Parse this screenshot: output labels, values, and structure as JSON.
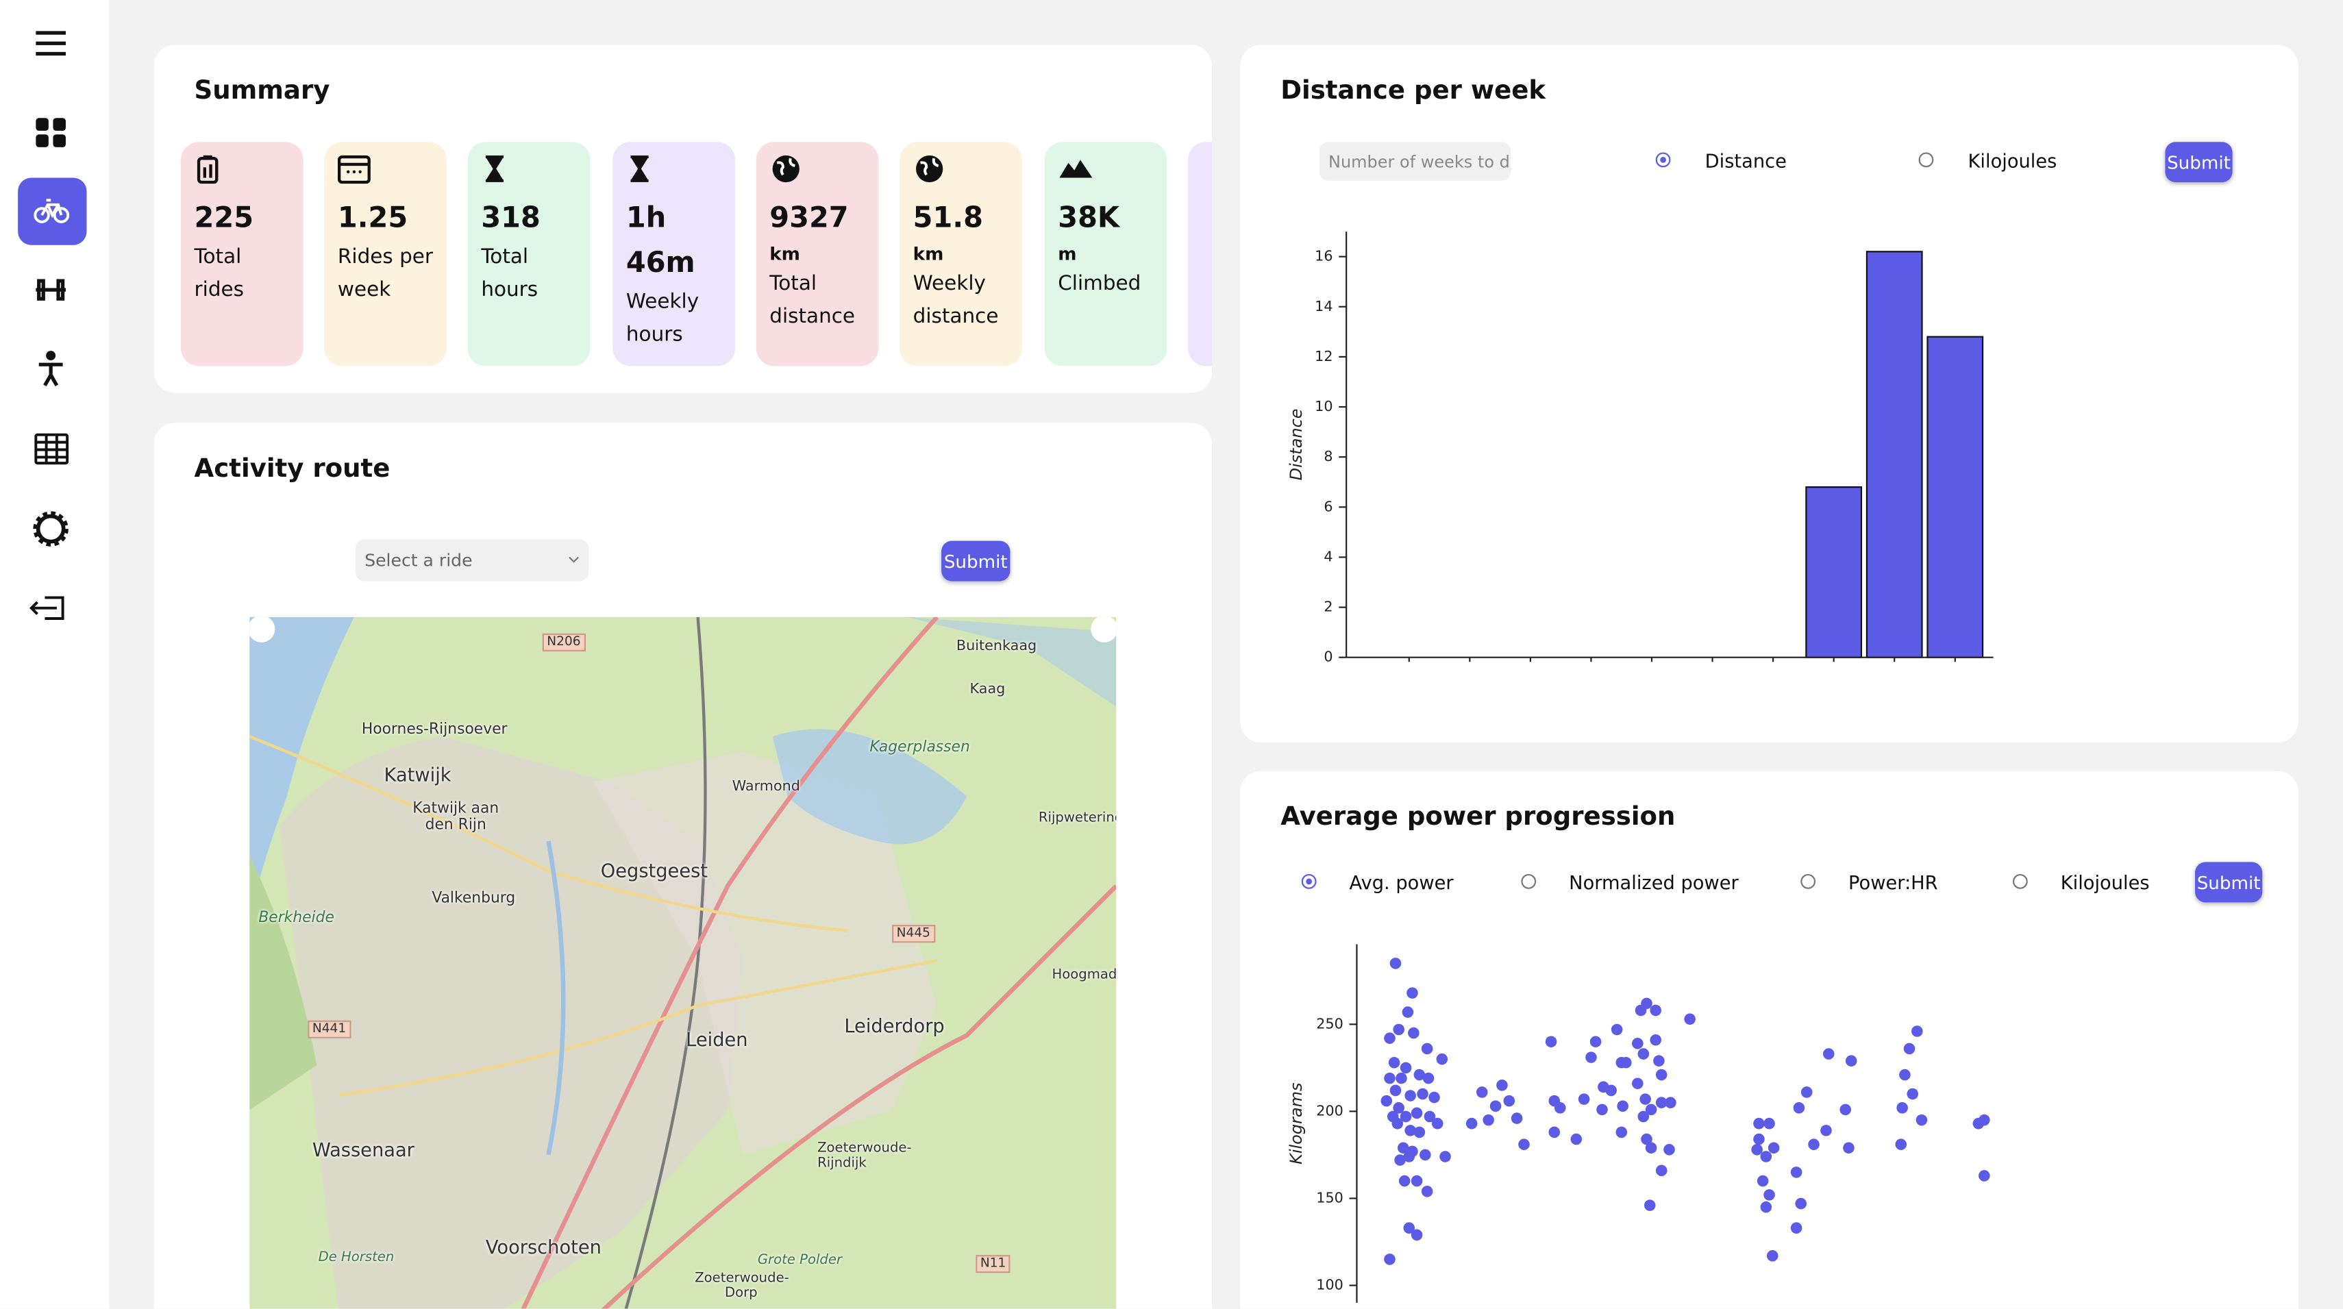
{
  "summary": {
    "title": "Summary",
    "tiles": [
      {
        "value": 225,
        "label": "Total rides"
      },
      {
        "value": 1.25,
        "label": "Rides per week"
      },
      {
        "value": 318,
        "label": "Total hours"
      },
      {
        "value": "1h 46m",
        "label": "Weekly hours"
      },
      {
        "value": 9327,
        "unit": "km",
        "label": "Total distance"
      },
      {
        "value": 51.8,
        "unit": "km",
        "label": "Weekly distance"
      },
      {
        "value": "38K",
        "unit": "m",
        "label": "Climbed"
      }
    ]
  },
  "route": {
    "title": "Activity route",
    "select_placeholder": "Select a ride",
    "submit": "Submit",
    "map_labels": [
      "Hoornes-Rijnsoever",
      "Katwijk",
      "Katwijk aan den Rijn",
      "Oegstgeest",
      "Valkenburg",
      "Berkheide",
      "Leiden",
      "Leiderdorp",
      "Wassenaar",
      "Voorschoten",
      "De Horsten",
      "Zoeterwoude-Rijndijk",
      "Zoeterwoude-Dorp",
      "Grote Polder",
      "Warmond",
      "Kagerplassen",
      "Kaag",
      "Buitenkaag",
      "Rijpwetering",
      "Hoogmade",
      "N206",
      "N445",
      "N441",
      "N11"
    ]
  },
  "distance_panel": {
    "title": "Distance per week",
    "input_placeholder": "Number of weeks to dis",
    "options": [
      "Distance",
      "Kilojoules"
    ],
    "submit": "Submit"
  },
  "power_panel": {
    "title": "Average power progression",
    "options": [
      "Avg. power",
      "Normalized power",
      "Power:HR",
      "Kilojoules"
    ],
    "submit": "Submit"
  },
  "chart_data": [
    {
      "type": "bar",
      "y_label": "Distance",
      "categories": [
        null,
        null,
        null,
        null,
        null,
        null,
        null,
        null,
        null,
        null
      ],
      "values": [
        0,
        0,
        0,
        0,
        0,
        0,
        0,
        6.8,
        16.2,
        12.8
      ],
      "color": "#5b5be6",
      "ylim": [
        0,
        17
      ],
      "yticks": [
        0,
        2,
        4,
        6,
        8,
        10,
        12,
        14,
        16
      ]
    },
    {
      "type": "scatter",
      "y_label": "Kilograms",
      "color": "#5b5be6",
      "xlim": [
        0,
        100
      ],
      "ylim": [
        90,
        296
      ],
      "yticks": [
        100,
        150,
        200,
        250
      ],
      "x": [
        6.0,
        8.6,
        7.9,
        6.5,
        5.1,
        8.8,
        10.9,
        5.8,
        7.6,
        5.1,
        6.9,
        9.7,
        11.1,
        13.2,
        6.0,
        8.3,
        10.2,
        12.0,
        4.6,
        6.5,
        7.6,
        9.3,
        5.6,
        11.3,
        12.5,
        6.3,
        8.3,
        9.7,
        7.2,
        8.6,
        6.7,
        8.1,
        10.6,
        13.7,
        7.4,
        9.3,
        10.9,
        8.1,
        9.3,
        5.1,
        17.8,
        19.4,
        20.4,
        21.5,
        22.5,
        23.6,
        24.8,
        25.9,
        30.1,
        30.6,
        31.5,
        30.6,
        34.0,
        35.2,
        36.3,
        37.0,
        38.0,
        38.2,
        39.4,
        40.3,
        41.0,
        41.7,
        41.2,
        41.0,
        44.0,
        44.9,
        46.3,
        43.5,
        44.4,
        46.3,
        46.8,
        47.2,
        43.5,
        44.7,
        45.6,
        47.2,
        48.6,
        44.4,
        44.9,
        45.6,
        48.4,
        47.2,
        45.4,
        51.6,
        62.3,
        63.9,
        62.3,
        62.0,
        63.4,
        64.6,
        62.9,
        63.9,
        63.4,
        64.4,
        68.5,
        69.7,
        68.1,
        68.8,
        68.1,
        70.8,
        72.7,
        73.1,
        75.7,
        76.2,
        76.6,
        86.8,
        85.6,
        84.9,
        84.5,
        86.1,
        87.5,
        84.3,
        96.3,
        97.2,
        97.2
      ],
      "values": [
        285,
        268,
        257,
        247,
        242,
        245,
        236,
        228,
        225,
        219,
        219,
        221,
        219,
        230,
        212,
        209,
        210,
        208,
        206,
        202,
        197,
        199,
        197,
        197,
        193,
        193,
        189,
        188,
        179,
        177,
        172,
        174,
        175,
        174,
        160,
        160,
        154,
        133,
        129,
        115,
        193,
        211,
        195,
        203,
        215,
        206,
        196,
        181,
        240,
        206,
        202,
        188,
        184,
        207,
        231,
        240,
        201,
        214,
        212,
        247,
        228,
        228,
        203,
        188,
        258,
        262,
        258,
        239,
        233,
        241,
        229,
        221,
        216,
        207,
        201,
        205,
        205,
        197,
        184,
        179,
        178,
        166,
        146,
        253,
        193,
        193,
        184,
        178,
        174,
        179,
        160,
        152,
        145,
        117,
        202,
        211,
        165,
        147,
        133,
        181,
        189,
        233,
        201,
        179,
        229,
        246,
        236,
        221,
        202,
        210,
        195,
        181,
        193,
        195,
        163
      ]
    }
  ]
}
